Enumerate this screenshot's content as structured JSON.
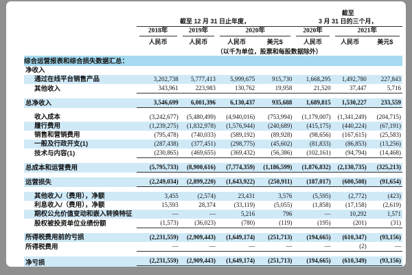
{
  "colors": {
    "frame_background": "#8f8f8f",
    "card_background": "#ffffff",
    "row_stripe": "#cfe9f7",
    "section_header_background": "#a5daf0",
    "rule": "#2f2f2f",
    "text": "#111111"
  },
  "header": {
    "group_annual": "截至 12 月 31 日止年度，",
    "group_quarter_line1": "截至",
    "group_quarter_line2": "3 月 31 日的三个月，",
    "years": [
      "2018年",
      "2019年",
      "2020年",
      "2020年",
      "2021年"
    ],
    "currencies": [
      "人民币",
      "人民币",
      "人民币",
      "美元$",
      "人民币",
      "人民币",
      "美元$"
    ],
    "unit_note": "（以千为单位，股票和每股数据除外）"
  },
  "table": {
    "rows": [
      {
        "type": "section",
        "label": "综合运营报表和综合损失数据汇总："
      },
      {
        "type": "label",
        "label": "净收入"
      },
      {
        "type": "data",
        "label": "通过在线平台销售产品",
        "indent": true,
        "stripe": true,
        "values": [
          "3,202,738",
          "5,777,413",
          "5,999,675",
          "915,730",
          "1,668,295",
          "1,492,780",
          "227,843"
        ]
      },
      {
        "type": "data",
        "label": "其他收入",
        "indent": true,
        "underline": "single",
        "values": [
          "343,961",
          "223,983",
          "130,762",
          "19,958",
          "21,520",
          "37,447",
          "5,716"
        ]
      },
      {
        "type": "spacer"
      },
      {
        "type": "data",
        "label": "总净收入",
        "bold": true,
        "stripe": true,
        "underline": "single",
        "values": [
          "3,546,699",
          "6,001,396",
          "6,130,437",
          "935,688",
          "1,689,815",
          "1,530,227",
          "233,559"
        ]
      },
      {
        "type": "spacer"
      },
      {
        "type": "data",
        "label": "收入成本",
        "indent": true,
        "values": [
          "(3,242,677)",
          "(5,480,499)",
          "(4,940,016)",
          "(753,994)",
          "(1,179,007)",
          "(1,341,249)",
          "(204,715)"
        ]
      },
      {
        "type": "data",
        "label": "履行费用",
        "indent": true,
        "stripe": true,
        "values": [
          "(1,239,275)",
          "(1,832,978)",
          "(1,576,944)",
          "(240,689)",
          "(415,175)",
          "(440,224)",
          "(67,191)"
        ]
      },
      {
        "type": "data",
        "label": "销售和营销费用",
        "indent": true,
        "values": [
          "(795,478)",
          "(740,033)",
          "(589,192)",
          "(89,928)",
          "(98,656)",
          "(167,615)",
          "(25,583)"
        ]
      },
      {
        "type": "data",
        "label": "一般及行政开支(1)",
        "indent": true,
        "stripe": true,
        "values": [
          "(287,438)",
          "(377,451)",
          "(298,775)",
          "(45,602)",
          "(81,833)",
          "(86,853)",
          "(13,256)"
        ]
      },
      {
        "type": "data",
        "label": "技术与内容(1)",
        "indent": true,
        "underline": "single",
        "values": [
          "(230,865)",
          "(469,655)",
          "(369,432)",
          "(56,386)",
          "(102,161)",
          "(94,794)",
          "(14,468)"
        ]
      },
      {
        "type": "spacer"
      },
      {
        "type": "data",
        "label": "总成本和运营费用",
        "bold": true,
        "stripe": true,
        "underline": "single",
        "values": [
          "(5,795,733)",
          "(8,900,616)",
          "(7,774,359)",
          "(1,186,599)",
          "(1,876,832)",
          "(2,130,735)",
          "(325,213)"
        ]
      },
      {
        "type": "spacer"
      },
      {
        "type": "data",
        "label": "运营损失",
        "bold": true,
        "stripe": true,
        "underline": "single",
        "values": [
          "(2,249,034)",
          "(2,899,220)",
          "(1,643,922)",
          "(250,911)",
          "(187,017)",
          "(600,508)",
          "(91,654)"
        ]
      },
      {
        "type": "spacer"
      },
      {
        "type": "data",
        "label": "其他收入/（费用），净额",
        "indent": true,
        "stripe": true,
        "values": [
          "3,455",
          "(2,574)",
          "23,431",
          "3,576",
          "(5,595)",
          "(2,772)",
          "(423)"
        ]
      },
      {
        "type": "data",
        "label": "利息收入/（费用），净额",
        "indent": true,
        "values": [
          "15,593",
          "28,374",
          "(33,119)",
          "(5,055)",
          "(1,858)",
          "(17,158)",
          "(2,619)"
        ]
      },
      {
        "type": "data",
        "label": "期权公允价值变动和嵌入转换特征",
        "indent": true,
        "stripe": true,
        "values": [
          "—",
          "—",
          "5,216",
          "796",
          "—",
          "10,292",
          "1,571"
        ]
      },
      {
        "type": "data",
        "label": "股权被投资单位业绩份额",
        "indent": true,
        "underline": "single",
        "values": [
          "(1,573)",
          "(36,023)",
          "(780)",
          "(119)",
          "(195)",
          "(201)",
          "(31)"
        ]
      },
      {
        "type": "spacer"
      },
      {
        "type": "data",
        "label": "所得税费用前的亏损",
        "bold": true,
        "stripe": true,
        "values": [
          "(2,231,559)",
          "(2,909,443)",
          "(1,649,174)",
          "(251,713)",
          "(194,665)",
          "(610,347)",
          "(93,156)"
        ]
      },
      {
        "type": "data",
        "label": "所得税费用",
        "underline": "single",
        "values": [
          "—",
          "—",
          "—",
          "—",
          "—",
          "(2)",
          "—"
        ]
      },
      {
        "type": "spacer"
      },
      {
        "type": "data",
        "label": "净亏损",
        "bold": true,
        "stripe": true,
        "underline": "double",
        "values": [
          "(2,231,559)",
          "(2,909,443)",
          "(1,649,174)",
          "(251,713)",
          "(194,665)",
          "(610,349)",
          "(93,156)"
        ]
      }
    ]
  }
}
